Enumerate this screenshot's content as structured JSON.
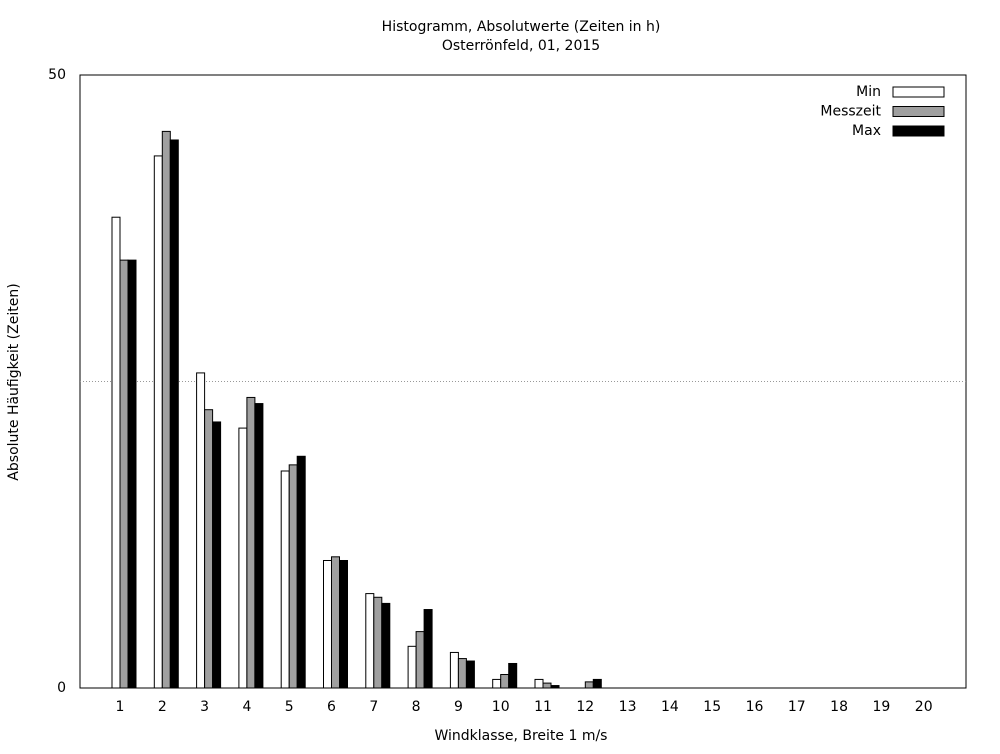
{
  "chart_data": {
    "type": "bar",
    "title": "Histogramm, Absolutwerte (Zeiten in h)",
    "subtitle": "Osterrönfeld, 01, 2015",
    "x_label": "Windklasse, Breite 1 m/s",
    "y_label": "Absolute Häufigkeit (Zeiten)",
    "categories": [
      "1",
      "2",
      "3",
      "4",
      "5",
      "6",
      "7",
      "8",
      "9",
      "10",
      "11",
      "12",
      "13",
      "14",
      "15",
      "16",
      "17",
      "18",
      "19",
      "20"
    ],
    "series": [
      {
        "name": "Min",
        "color": "#ffffff",
        "values": [
          38.4,
          43.4,
          25.7,
          21.2,
          17.7,
          10.4,
          7.7,
          3.4,
          2.9,
          0.7,
          0.7,
          0,
          0,
          0,
          0,
          0,
          0,
          0,
          0,
          0
        ]
      },
      {
        "name": "Messzeit",
        "color": "#a0a0a0",
        "values": [
          34.9,
          45.4,
          22.7,
          23.7,
          18.2,
          10.7,
          7.4,
          4.6,
          2.4,
          1.1,
          0.4,
          0.5,
          0,
          0,
          0,
          0,
          0,
          0,
          0,
          0
        ]
      },
      {
        "name": "Max",
        "color": "#000000",
        "values": [
          34.9,
          44.7,
          21.7,
          23.2,
          18.9,
          10.4,
          6.9,
          6.4,
          2.2,
          2.0,
          0.2,
          0.7,
          0,
          0,
          0,
          0,
          0,
          0,
          0,
          0
        ]
      }
    ],
    "ylim": [
      0,
      50
    ],
    "yticks": [
      0,
      50
    ],
    "ygrid": [
      25
    ],
    "legend": "top-right"
  }
}
